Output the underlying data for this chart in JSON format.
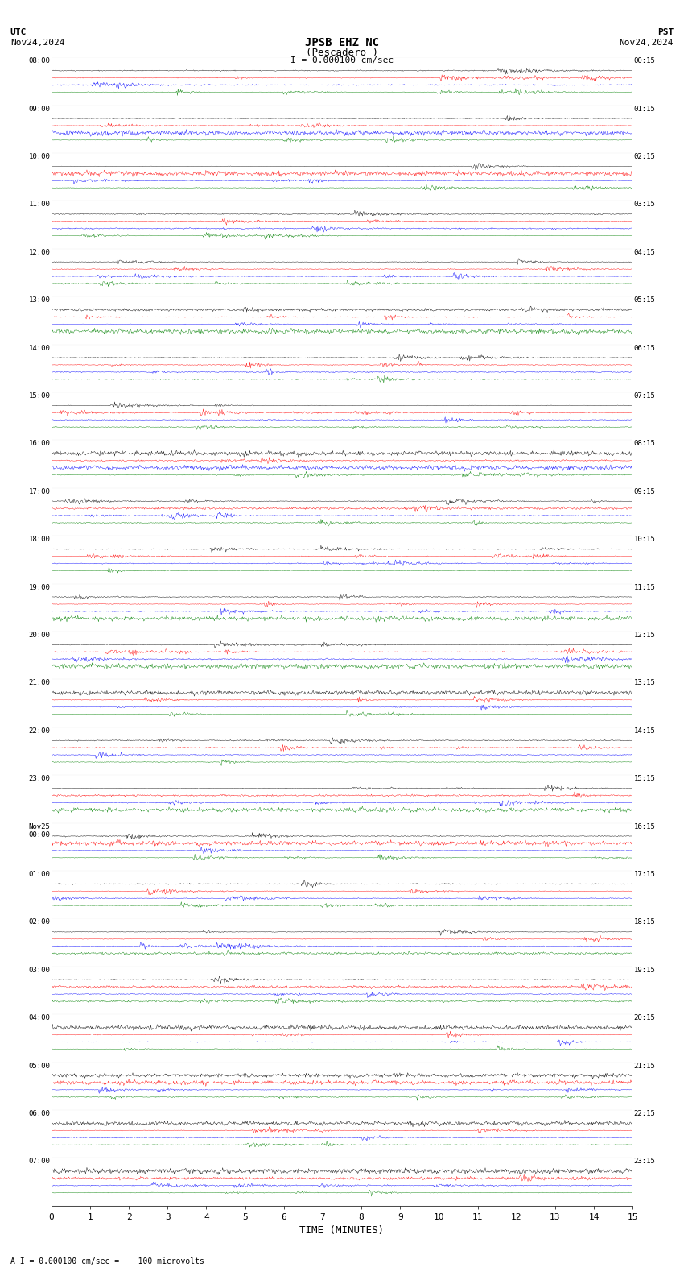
{
  "title_line1": "JPSB EHZ NC",
  "title_line2": "(Pescadero )",
  "scale_label": "I = 0.000100 cm/sec",
  "utc_label": "UTC",
  "utc_date": "Nov24,2024",
  "pst_label": "PST",
  "pst_date": "Nov24,2024",
  "bottom_label": "A I = 0.000100 cm/sec =    100 microvolts",
  "xlabel": "TIME (MINUTES)",
  "bg_color": "#ffffff",
  "trace_colors": [
    "#000000",
    "#ff0000",
    "#0000ff",
    "#008000"
  ],
  "left_times": [
    "08:00",
    "09:00",
    "10:00",
    "11:00",
    "12:00",
    "13:00",
    "14:00",
    "15:00",
    "16:00",
    "17:00",
    "18:00",
    "19:00",
    "20:00",
    "21:00",
    "22:00",
    "23:00",
    "Nov25\n00:00",
    "01:00",
    "02:00",
    "03:00",
    "04:00",
    "05:00",
    "06:00",
    "07:00"
  ],
  "right_times": [
    "00:15",
    "01:15",
    "02:15",
    "03:15",
    "04:15",
    "05:15",
    "06:15",
    "07:15",
    "08:15",
    "09:15",
    "10:15",
    "11:15",
    "12:15",
    "13:15",
    "14:15",
    "15:15",
    "16:15",
    "17:15",
    "18:15",
    "19:15",
    "20:15",
    "21:15",
    "22:15",
    "23:15"
  ],
  "n_rows": 24,
  "traces_per_row": 4,
  "x_ticks": [
    0,
    1,
    2,
    3,
    4,
    5,
    6,
    7,
    8,
    9,
    10,
    11,
    12,
    13,
    14,
    15
  ],
  "t_minutes": 15.0,
  "n_points": 900,
  "seed": 42
}
